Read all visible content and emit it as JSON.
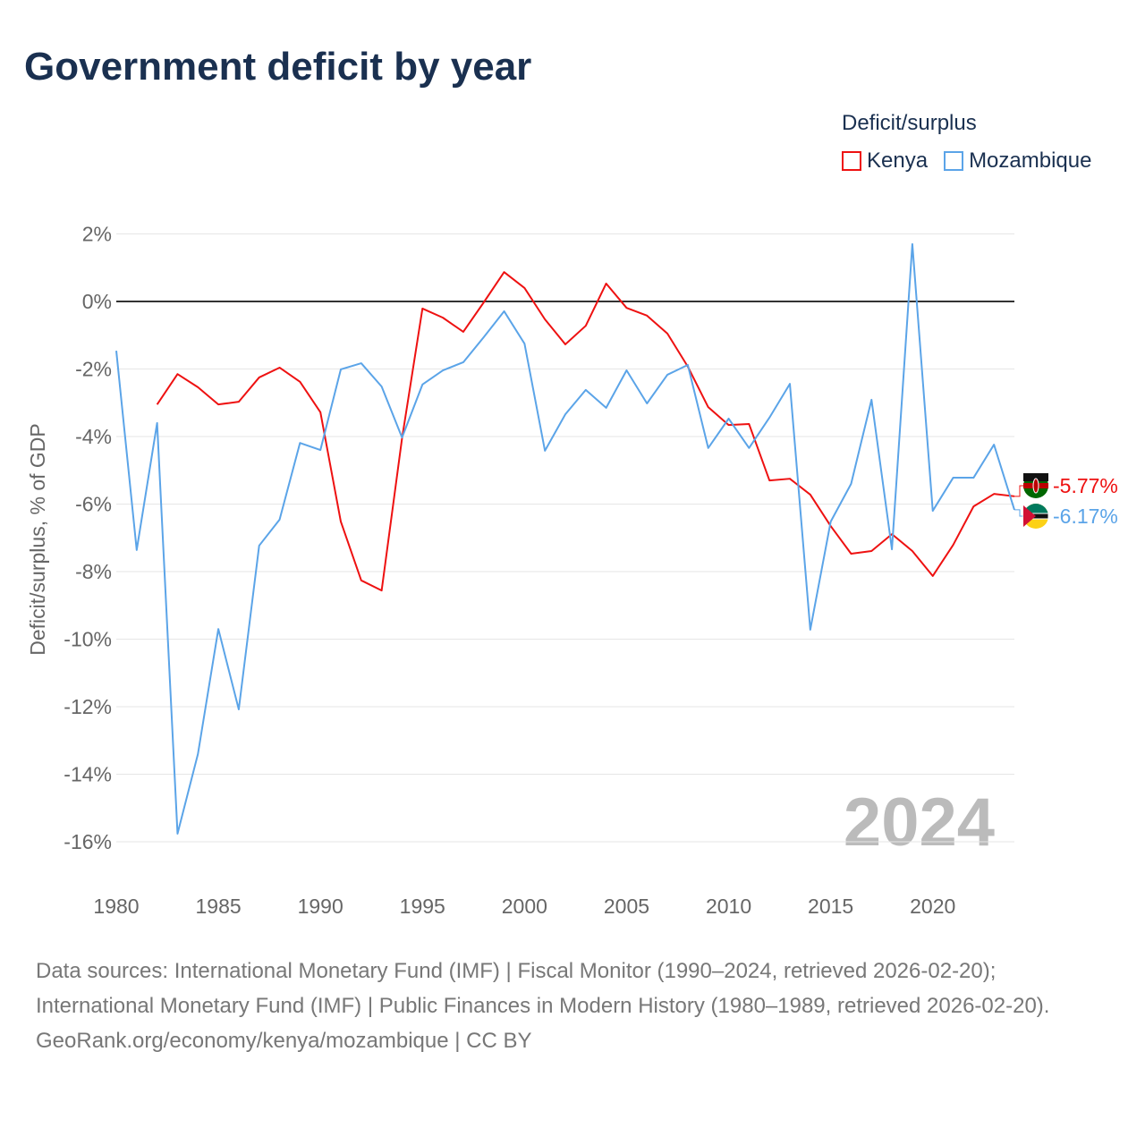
{
  "chart_data": {
    "type": "line",
    "title": "Government deficit by year",
    "xlabel": "",
    "ylabel": "Deficit/surplus, % of GDP",
    "legend_title": "Deficit/surplus",
    "legend_position": "top-right",
    "xlim": [
      1980,
      2024
    ],
    "ylim": [
      -17,
      2.5
    ],
    "x_ticks": [
      1980,
      1985,
      1990,
      1995,
      2000,
      2005,
      2010,
      2015,
      2020
    ],
    "x_tick_labels": [
      "1980",
      "1985",
      "1990",
      "1995",
      "2000",
      "2005",
      "2010",
      "2015",
      "2020"
    ],
    "y_ticks": [
      2,
      0,
      -2,
      -4,
      -6,
      -8,
      -10,
      -12,
      -14,
      -16
    ],
    "y_tick_labels": [
      "2%",
      "0%",
      "-2%",
      "-4%",
      "-6%",
      "-8%",
      "-10%",
      "-12%",
      "-14%",
      "-16%"
    ],
    "grid": true,
    "year_watermark": "2024",
    "series": [
      {
        "name": "Kenya",
        "color": "#ee1111",
        "start_year": 1982,
        "values": [
          -3.05,
          -2.15,
          -2.54,
          -3.05,
          -2.97,
          -2.25,
          -1.96,
          -2.38,
          -3.28,
          -6.52,
          -8.26,
          -8.56,
          -4.05,
          -0.21,
          -0.48,
          -0.9,
          -0.03,
          0.87,
          0.4,
          -0.53,
          -1.27,
          -0.72,
          0.53,
          -0.19,
          -0.42,
          -0.95,
          -1.93,
          -3.13,
          -3.66,
          -3.63,
          -5.3,
          -5.25,
          -5.72,
          -6.65,
          -7.47,
          -7.39,
          -6.89,
          -7.39,
          -8.13,
          -7.21,
          -6.07,
          -5.7,
          -5.77
        ],
        "end_label": "-5.77%"
      },
      {
        "name": "Mozambique",
        "color": "#5ba4e8",
        "start_year": 1980,
        "values": [
          -1.46,
          -7.36,
          -3.6,
          -15.76,
          -13.4,
          -9.7,
          -12.08,
          -7.23,
          -6.46,
          -4.19,
          -4.4,
          -2.01,
          -1.83,
          -2.52,
          -4.03,
          -2.46,
          -2.04,
          -1.8,
          -1.06,
          -0.29,
          -1.25,
          -4.42,
          -3.34,
          -2.62,
          -3.15,
          -2.04,
          -3.02,
          -2.17,
          -1.88,
          -4.34,
          -3.47,
          -4.34,
          -3.44,
          -2.44,
          -9.72,
          -6.52,
          -5.4,
          -2.91,
          -7.34,
          1.7,
          -6.2,
          -5.22,
          -5.22,
          -4.24,
          -6.17
        ],
        "end_label": "-6.17%"
      }
    ]
  },
  "sources": {
    "line1": "Data sources: International Monetary Fund (IMF) | Fiscal Monitor (1990–2024, retrieved 2026-02-20); International Monetary Fund (IMF) | Public Finances in Modern History (1980–1989, retrieved 2026-02-20).",
    "line2": "GeoRank.org/economy/kenya/mozambique | CC BY"
  }
}
